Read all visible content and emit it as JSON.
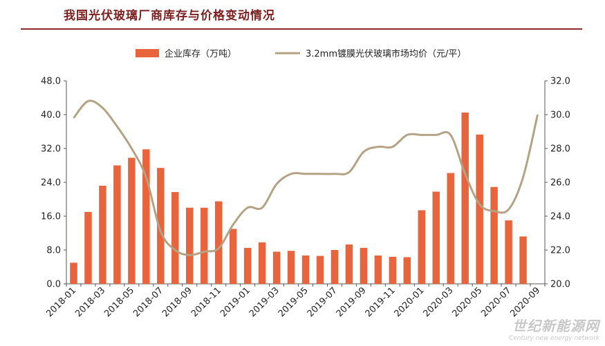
{
  "chart_data": {
    "type": "bar+line",
    "title": "我国光伏玻璃厂商库存与价格变动情况",
    "categories": [
      "2018-01",
      "2018-02",
      "2018-03",
      "2018-04",
      "2018-05",
      "2018-06",
      "2018-07",
      "2018-08",
      "2018-09",
      "2018-10",
      "2018-11",
      "2018-12",
      "2019-01",
      "2019-02",
      "2019-03",
      "2019-04",
      "2019-05",
      "2019-06",
      "2019-07",
      "2019-08",
      "2019-09",
      "2019-10",
      "2019-11",
      "2019-12",
      "2020-01",
      "2020-02",
      "2020-03",
      "2020-04",
      "2020-05",
      "2020-06",
      "2020-07",
      "2020-08",
      "2020-09"
    ],
    "x_tick_labels": [
      "2018-01",
      "2018-03",
      "2018-05",
      "2018-07",
      "2018-09",
      "2018-11",
      "2019-01",
      "2019-03",
      "2019-05",
      "2019-07",
      "2019-09",
      "2019-11",
      "2020-01",
      "2020-03",
      "2020-05",
      "2020-07",
      "2020-09"
    ],
    "series": [
      {
        "name": "企业库存（万吨）",
        "type": "bar",
        "axis": "left",
        "color": "#e8643c",
        "values": [
          5.0,
          17.0,
          23.2,
          28.0,
          29.8,
          31.8,
          27.4,
          21.7,
          18.0,
          18.0,
          19.5,
          13.0,
          8.5,
          9.8,
          7.6,
          7.8,
          6.7,
          6.6,
          8.0,
          9.3,
          8.5,
          6.7,
          6.4,
          6.3,
          17.4,
          21.8,
          26.2,
          40.5,
          35.3,
          22.9,
          15.0,
          11.2,
          null
        ]
      },
      {
        "name": "3.2mm镀膜光伏玻璃市场均价（元/平）",
        "type": "line",
        "axis": "right",
        "color": "#b3a284",
        "values": [
          29.8,
          30.8,
          30.4,
          29.3,
          28.0,
          26.3,
          23.1,
          22.0,
          21.7,
          21.9,
          22.1,
          23.5,
          24.5,
          24.5,
          25.9,
          26.5,
          26.5,
          26.5,
          26.5,
          26.6,
          27.8,
          28.1,
          28.1,
          28.8,
          28.8,
          28.8,
          28.8,
          26.5,
          24.7,
          24.3,
          24.4,
          26.3,
          30.0
        ]
      }
    ],
    "y_left": {
      "min": 0,
      "max": 48,
      "ticks": [
        "0.0",
        "8.0",
        "16.0",
        "24.0",
        "32.0",
        "40.0",
        "48.0"
      ]
    },
    "y_right": {
      "min": 20,
      "max": 32,
      "ticks": [
        "20.0",
        "22.0",
        "24.0",
        "26.0",
        "28.0",
        "30.0",
        "32.0"
      ]
    },
    "legend": "top-center",
    "grid": false
  },
  "watermark": {
    "main": "世纪新能源网",
    "sub": "Century new energy network"
  }
}
